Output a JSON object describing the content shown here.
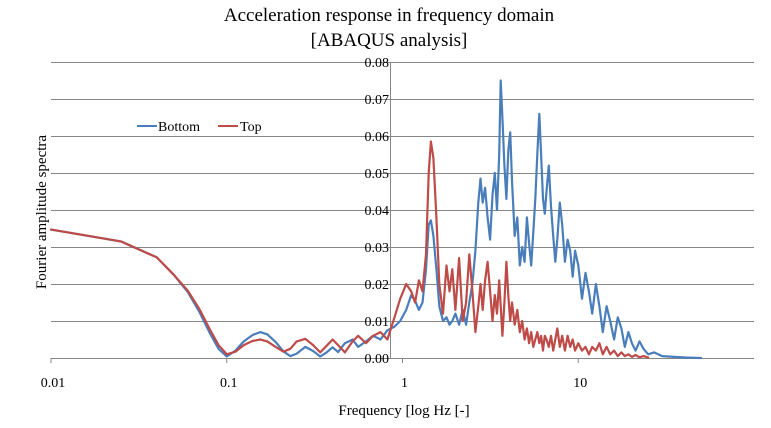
{
  "chart_data": {
    "type": "line",
    "title": "Acceleration response in frequency domain",
    "subtitle": "[ABAQUS  analysis]",
    "xlabel": "Frequency [log Hz [-]",
    "ylabel": "Fourier amplitude spectra",
    "x_scale": "log",
    "xlim": [
      0.01,
      100
    ],
    "ylim": [
      0,
      0.08
    ],
    "x_ticks": [
      "0.01",
      "0.1",
      "1",
      "10"
    ],
    "y_ticks": [
      "0.00",
      "0.01",
      "0.02",
      "0.03",
      "0.04",
      "0.05",
      "0.06",
      "0.07",
      "0.08"
    ],
    "grid": "horizontal",
    "legend_position": "upper-left",
    "colors": {
      "bottom": "#4a7ebb",
      "top": "#be4b48",
      "grid": "#868686"
    },
    "series": [
      {
        "name": "Bottom",
        "color": "#4a7ebb",
        "points": [
          [
            0.01,
            0.0347
          ],
          [
            0.015,
            0.0333
          ],
          [
            0.025,
            0.0315
          ],
          [
            0.04,
            0.0272
          ],
          [
            0.05,
            0.0225
          ],
          [
            0.06,
            0.0178
          ],
          [
            0.07,
            0.0124
          ],
          [
            0.08,
            0.0068
          ],
          [
            0.09,
            0.0024
          ],
          [
            0.1,
            0.0004
          ],
          [
            0.112,
            0.002
          ],
          [
            0.125,
            0.0045
          ],
          [
            0.14,
            0.0062
          ],
          [
            0.155,
            0.007
          ],
          [
            0.17,
            0.0064
          ],
          [
            0.19,
            0.0043
          ],
          [
            0.21,
            0.0018
          ],
          [
            0.23,
            0.0005
          ],
          [
            0.25,
            0.0012
          ],
          [
            0.28,
            0.003
          ],
          [
            0.31,
            0.0019
          ],
          [
            0.34,
            0.0004
          ],
          [
            0.37,
            0.0015
          ],
          [
            0.4,
            0.0029
          ],
          [
            0.43,
            0.0016
          ],
          [
            0.47,
            0.004
          ],
          [
            0.52,
            0.005
          ],
          [
            0.56,
            0.003
          ],
          [
            0.62,
            0.0045
          ],
          [
            0.68,
            0.006
          ],
          [
            0.75,
            0.005
          ],
          [
            0.82,
            0.0075
          ],
          [
            0.9,
            0.0085
          ],
          [
            0.97,
            0.01
          ],
          [
            1.05,
            0.013
          ],
          [
            1.12,
            0.017
          ],
          [
            1.18,
            0.0155
          ],
          [
            1.24,
            0.013
          ],
          [
            1.3,
            0.015
          ],
          [
            1.36,
            0.024
          ],
          [
            1.41,
            0.036
          ],
          [
            1.45,
            0.0372
          ],
          [
            1.5,
            0.033
          ],
          [
            1.56,
            0.024
          ],
          [
            1.62,
            0.014
          ],
          [
            1.7,
            0.01
          ],
          [
            1.78,
            0.011
          ],
          [
            1.85,
            0.009
          ],
          [
            1.92,
            0.01
          ],
          [
            2.0,
            0.012
          ],
          [
            2.1,
            0.009
          ],
          [
            2.2,
            0.013
          ],
          [
            2.3,
            0.009
          ],
          [
            2.4,
            0.015
          ],
          [
            2.5,
            0.02
          ],
          [
            2.6,
            0.029
          ],
          [
            2.7,
            0.042
          ],
          [
            2.78,
            0.0485
          ],
          [
            2.86,
            0.042
          ],
          [
            2.95,
            0.046
          ],
          [
            3.05,
            0.038
          ],
          [
            3.15,
            0.032
          ],
          [
            3.25,
            0.044
          ],
          [
            3.35,
            0.05
          ],
          [
            3.45,
            0.04
          ],
          [
            3.55,
            0.055
          ],
          [
            3.62,
            0.075
          ],
          [
            3.7,
            0.065
          ],
          [
            3.8,
            0.052
          ],
          [
            3.9,
            0.043
          ],
          [
            4.0,
            0.056
          ],
          [
            4.1,
            0.061
          ],
          [
            4.2,
            0.048
          ],
          [
            4.35,
            0.033
          ],
          [
            4.5,
            0.038
          ],
          [
            4.65,
            0.025
          ],
          [
            4.8,
            0.03
          ],
          [
            4.95,
            0.026
          ],
          [
            5.1,
            0.038
          ],
          [
            5.25,
            0.031
          ],
          [
            5.4,
            0.025
          ],
          [
            5.55,
            0.034
          ],
          [
            5.7,
            0.043
          ],
          [
            5.85,
            0.055
          ],
          [
            6.0,
            0.066
          ],
          [
            6.15,
            0.055
          ],
          [
            6.3,
            0.043
          ],
          [
            6.45,
            0.039
          ],
          [
            6.6,
            0.045
          ],
          [
            6.8,
            0.052
          ],
          [
            7.0,
            0.041
          ],
          [
            7.2,
            0.033
          ],
          [
            7.4,
            0.026
          ],
          [
            7.6,
            0.032
          ],
          [
            7.85,
            0.042
          ],
          [
            8.1,
            0.036
          ],
          [
            8.4,
            0.026
          ],
          [
            8.7,
            0.032
          ],
          [
            9.0,
            0.029
          ],
          [
            9.3,
            0.022
          ],
          [
            9.6,
            0.029
          ],
          [
            10.0,
            0.025
          ],
          [
            10.5,
            0.016
          ],
          [
            11.0,
            0.023
          ],
          [
            11.5,
            0.018
          ],
          [
            12.0,
            0.012
          ],
          [
            12.6,
            0.02
          ],
          [
            13.2,
            0.014
          ],
          [
            13.8,
            0.007
          ],
          [
            14.5,
            0.014
          ],
          [
            15.2,
            0.01
          ],
          [
            16.0,
            0.005
          ],
          [
            16.8,
            0.011
          ],
          [
            17.6,
            0.008
          ],
          [
            18.4,
            0.003
          ],
          [
            19.3,
            0.007
          ],
          [
            20.2,
            0.004
          ],
          [
            21.2,
            0.002
          ],
          [
            22.3,
            0.0045
          ],
          [
            23.5,
            0.0025
          ],
          [
            25.0,
            0.001
          ],
          [
            27.0,
            0.0015
          ],
          [
            30.0,
            0.0005
          ],
          [
            35.0,
            0.0003
          ],
          [
            42.0,
            0.0001
          ],
          [
            50.0,
            0.0
          ]
        ]
      },
      {
        "name": "Top",
        "color": "#be4b48",
        "points": [
          [
            0.01,
            0.0347
          ],
          [
            0.015,
            0.0333
          ],
          [
            0.025,
            0.0315
          ],
          [
            0.04,
            0.0272
          ],
          [
            0.05,
            0.0225
          ],
          [
            0.06,
            0.0182
          ],
          [
            0.07,
            0.0132
          ],
          [
            0.08,
            0.0078
          ],
          [
            0.09,
            0.0034
          ],
          [
            0.1,
            0.001
          ],
          [
            0.112,
            0.0017
          ],
          [
            0.125,
            0.0035
          ],
          [
            0.14,
            0.0046
          ],
          [
            0.155,
            0.005
          ],
          [
            0.17,
            0.0045
          ],
          [
            0.19,
            0.003
          ],
          [
            0.21,
            0.0017
          ],
          [
            0.23,
            0.0025
          ],
          [
            0.25,
            0.0045
          ],
          [
            0.28,
            0.0052
          ],
          [
            0.31,
            0.0035
          ],
          [
            0.34,
            0.0015
          ],
          [
            0.37,
            0.0033
          ],
          [
            0.4,
            0.005
          ],
          [
            0.43,
            0.0035
          ],
          [
            0.47,
            0.0015
          ],
          [
            0.52,
            0.0045
          ],
          [
            0.56,
            0.006
          ],
          [
            0.62,
            0.004
          ],
          [
            0.68,
            0.006
          ],
          [
            0.75,
            0.007
          ],
          [
            0.82,
            0.005
          ],
          [
            0.9,
            0.011
          ],
          [
            0.97,
            0.016
          ],
          [
            1.05,
            0.02
          ],
          [
            1.12,
            0.018
          ],
          [
            1.18,
            0.015
          ],
          [
            1.24,
            0.021
          ],
          [
            1.3,
            0.018
          ],
          [
            1.36,
            0.028
          ],
          [
            1.41,
            0.05
          ],
          [
            1.45,
            0.0585
          ],
          [
            1.5,
            0.054
          ],
          [
            1.56,
            0.038
          ],
          [
            1.62,
            0.02
          ],
          [
            1.7,
            0.012
          ],
          [
            1.78,
            0.025
          ],
          [
            1.85,
            0.018
          ],
          [
            1.92,
            0.024
          ],
          [
            2.0,
            0.013
          ],
          [
            2.1,
            0.027
          ],
          [
            2.2,
            0.01
          ],
          [
            2.3,
            0.015
          ],
          [
            2.4,
            0.028
          ],
          [
            2.5,
            0.018
          ],
          [
            2.6,
            0.007
          ],
          [
            2.7,
            0.014
          ],
          [
            2.78,
            0.02
          ],
          [
            2.86,
            0.013
          ],
          [
            2.95,
            0.021
          ],
          [
            3.05,
            0.026
          ],
          [
            3.15,
            0.018
          ],
          [
            3.25,
            0.01
          ],
          [
            3.35,
            0.017
          ],
          [
            3.45,
            0.012
          ],
          [
            3.55,
            0.021
          ],
          [
            3.62,
            0.014
          ],
          [
            3.7,
            0.006
          ],
          [
            3.8,
            0.015
          ],
          [
            3.9,
            0.026
          ],
          [
            4.0,
            0.017
          ],
          [
            4.1,
            0.01
          ],
          [
            4.2,
            0.015
          ],
          [
            4.35,
            0.009
          ],
          [
            4.5,
            0.013
          ],
          [
            4.65,
            0.007
          ],
          [
            4.8,
            0.01
          ],
          [
            4.95,
            0.005
          ],
          [
            5.1,
            0.008
          ],
          [
            5.25,
            0.004
          ],
          [
            5.4,
            0.007
          ],
          [
            5.55,
            0.003
          ],
          [
            5.7,
            0.005
          ],
          [
            5.85,
            0.007
          ],
          [
            6.0,
            0.004
          ],
          [
            6.15,
            0.006
          ],
          [
            6.3,
            0.002
          ],
          [
            6.45,
            0.006
          ],
          [
            6.6,
            0.005
          ],
          [
            6.8,
            0.003
          ],
          [
            7.0,
            0.006
          ],
          [
            7.2,
            0.002
          ],
          [
            7.4,
            0.005
          ],
          [
            7.6,
            0.008
          ],
          [
            7.85,
            0.003
          ],
          [
            8.1,
            0.006
          ],
          [
            8.4,
            0.002
          ],
          [
            8.7,
            0.006
          ],
          [
            9.0,
            0.003
          ],
          [
            9.3,
            0.005
          ],
          [
            9.6,
            0.002
          ],
          [
            10.0,
            0.004
          ],
          [
            10.5,
            0.002
          ],
          [
            11.0,
            0.003
          ],
          [
            11.5,
            0.001
          ],
          [
            12.0,
            0.003
          ],
          [
            12.6,
            0.002
          ],
          [
            13.2,
            0.004
          ],
          [
            13.8,
            0.001
          ],
          [
            14.5,
            0.003
          ],
          [
            15.2,
            0.001
          ],
          [
            16.0,
            0.002
          ],
          [
            16.8,
            0.0005
          ],
          [
            17.6,
            0.0015
          ],
          [
            18.4,
            0.0005
          ],
          [
            19.3,
            0.001
          ],
          [
            20.2,
            0.0003
          ],
          [
            21.2,
            0.0008
          ],
          [
            22.3,
            0.0002
          ],
          [
            23.5,
            0.0005
          ],
          [
            25.0,
            0.0001
          ]
        ]
      }
    ]
  }
}
